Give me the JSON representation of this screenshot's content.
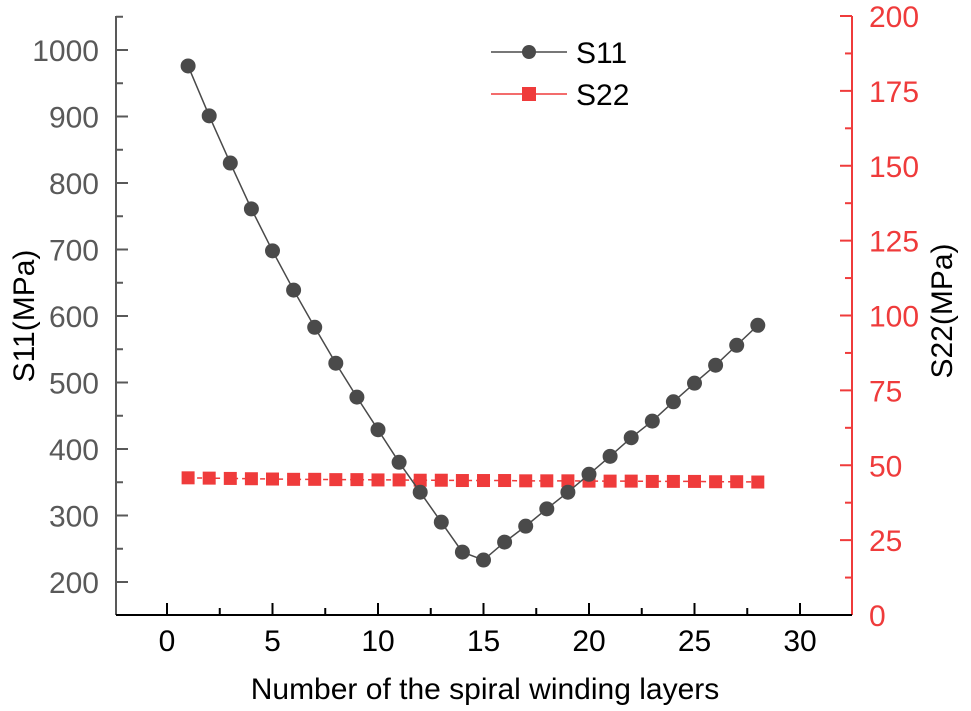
{
  "chart_data": {
    "type": "line",
    "title": "",
    "xlabel": "Number of the spiral winding layers",
    "ylabel": "S11(MPa)",
    "y2label": "S22(MPa)",
    "xlim": [
      -2.3,
      32.5
    ],
    "ylim": [
      150,
      1051
    ],
    "y2lim": [
      0,
      200
    ],
    "x_ticks": [
      0,
      5,
      10,
      15,
      20,
      25,
      30
    ],
    "y_ticks": [
      200,
      300,
      400,
      500,
      600,
      700,
      800,
      900,
      1000
    ],
    "y2_ticks": [
      0,
      25,
      50,
      75,
      100,
      125,
      150,
      175,
      200
    ],
    "grid": false,
    "legend_position": "top-center",
    "x": [
      1,
      2,
      3,
      4,
      5,
      6,
      7,
      8,
      9,
      10,
      11,
      12,
      13,
      14,
      15,
      16,
      17,
      18,
      19,
      20,
      21,
      22,
      23,
      24,
      25,
      26,
      27,
      28
    ],
    "series": [
      {
        "name": "S11",
        "axis": "left",
        "color": "#4a4a4a",
        "marker": "circle",
        "line": "solid",
        "values": [
          976,
          901,
          830,
          761,
          698,
          639,
          583,
          529,
          478,
          429,
          380,
          335,
          290,
          245,
          233,
          260,
          284,
          310,
          335,
          362,
          389,
          417,
          442,
          471,
          499,
          526,
          556,
          586
        ]
      },
      {
        "name": "S22",
        "axis": "right",
        "color": "#ef3b3b",
        "marker": "square",
        "line": "dashed",
        "values": [
          45.8,
          45.7,
          45.6,
          45.5,
          45.4,
          45.3,
          45.3,
          45.2,
          45.2,
          45.1,
          45.1,
          45.0,
          45.0,
          44.9,
          44.9,
          44.9,
          44.8,
          44.8,
          44.8,
          44.7,
          44.7,
          44.7,
          44.6,
          44.6,
          44.6,
          44.5,
          44.5,
          44.4
        ]
      }
    ]
  },
  "colors": {
    "left_axis": "#595959",
    "right_axis": "#ef3b3b",
    "bottom_axis": "#000000",
    "s11": "#4a4a4a",
    "s22": "#ef3b3b"
  }
}
